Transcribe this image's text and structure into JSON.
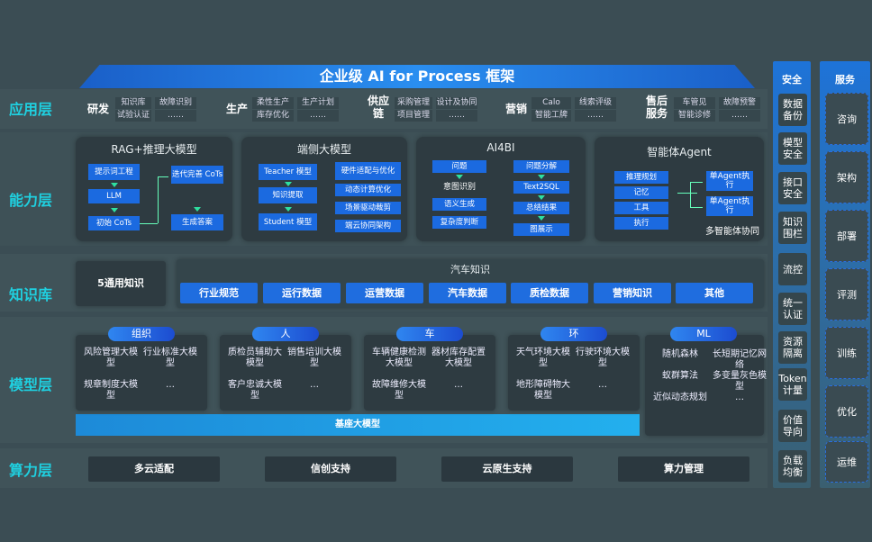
{
  "title": "企业级 AI for Process 框架",
  "layers": {
    "app": "应用层",
    "capability": "能力层",
    "knowledge": "知识库",
    "model": "模型层",
    "compute": "算力层"
  },
  "app": [
    {
      "name": "研发",
      "items": [
        "知识库",
        "试验认证",
        "故障识别",
        "……"
      ]
    },
    {
      "name": "生产",
      "items": [
        "柔性生产",
        "库存优化",
        "生产计划",
        "……"
      ]
    },
    {
      "name": "供应链",
      "items": [
        "采购管理",
        "项目管理",
        "设计及协同",
        "……"
      ]
    },
    {
      "name": "营销",
      "items": [
        "Calo",
        "智能工牌",
        "线索评级",
        "……"
      ]
    },
    {
      "name": "售后服务",
      "items": [
        "车管见",
        "智能诊修",
        "故障预警",
        "……"
      ]
    }
  ],
  "capability": {
    "rag": {
      "title": "RAG+推理大模型",
      "items": [
        "提示词工程",
        "LLM",
        "初始 CoTs",
        "迭代完善 CoTs",
        "生成答案"
      ]
    },
    "edge": {
      "title": "端侧大模型",
      "items": [
        "Teacher 模型",
        "知识提取",
        "Student 模型",
        "硬件适配与优化",
        "动态计算优化",
        "场景驱动裁剪",
        "端云协同架构"
      ]
    },
    "ai4bi": {
      "title": "AI4BI",
      "items": [
        "问题",
        "意图识别",
        "语义生成",
        "复杂度判断",
        "问题分解",
        "Text2SQL",
        "总结结果",
        "图展示"
      ]
    },
    "agent": {
      "title": "智能体Agent",
      "items": [
        "推理规划",
        "记忆",
        "工具",
        "执行",
        "单Agent执行",
        "单Agent执行"
      ],
      "footer": "多智能体协同"
    }
  },
  "knowledge": {
    "general": "5通用知识",
    "auto_title": "汽车知识",
    "items": [
      "行业规范",
      "运行数据",
      "运营数据",
      "汽车数据",
      "质检数据",
      "营销知识",
      "其他"
    ]
  },
  "model": {
    "groups": [
      {
        "name": "组织",
        "items": [
          "风险管理大模型",
          "行业标准大模型",
          "规章制度大模型",
          "…"
        ]
      },
      {
        "name": "人",
        "items": [
          "质检员辅助大模型",
          "销售培训大模型",
          "客户忠诚大模型",
          "…"
        ]
      },
      {
        "name": "车",
        "items": [
          "车辆健康检测大模型",
          "器材库存配置大模型",
          "故障维修大模型",
          "…"
        ]
      },
      {
        "name": "环",
        "items": [
          "天气环境大模型",
          "行驶环境大模型",
          "地形障碍物大模型",
          "…"
        ]
      },
      {
        "name": "ML",
        "items": [
          "随机森林",
          "长短期记忆网络",
          "蚁群算法",
          "多变量灰色模型",
          "近似动态规划",
          "…"
        ]
      }
    ],
    "base": "基座大模型"
  },
  "compute": [
    "多云适配",
    "信创支持",
    "云原生支持",
    "算力管理"
  ],
  "security": {
    "title": "安全",
    "items": [
      "数据备份",
      "模型安全",
      "接口安全",
      "知识围栏",
      "流控",
      "统一认证",
      "资源隔离",
      "Token计量",
      "价值导向",
      "负载均衡"
    ]
  },
  "service": {
    "title": "服务",
    "items": [
      "咨询",
      "架构",
      "部署",
      "评测",
      "训练",
      "优化",
      "运维"
    ]
  }
}
